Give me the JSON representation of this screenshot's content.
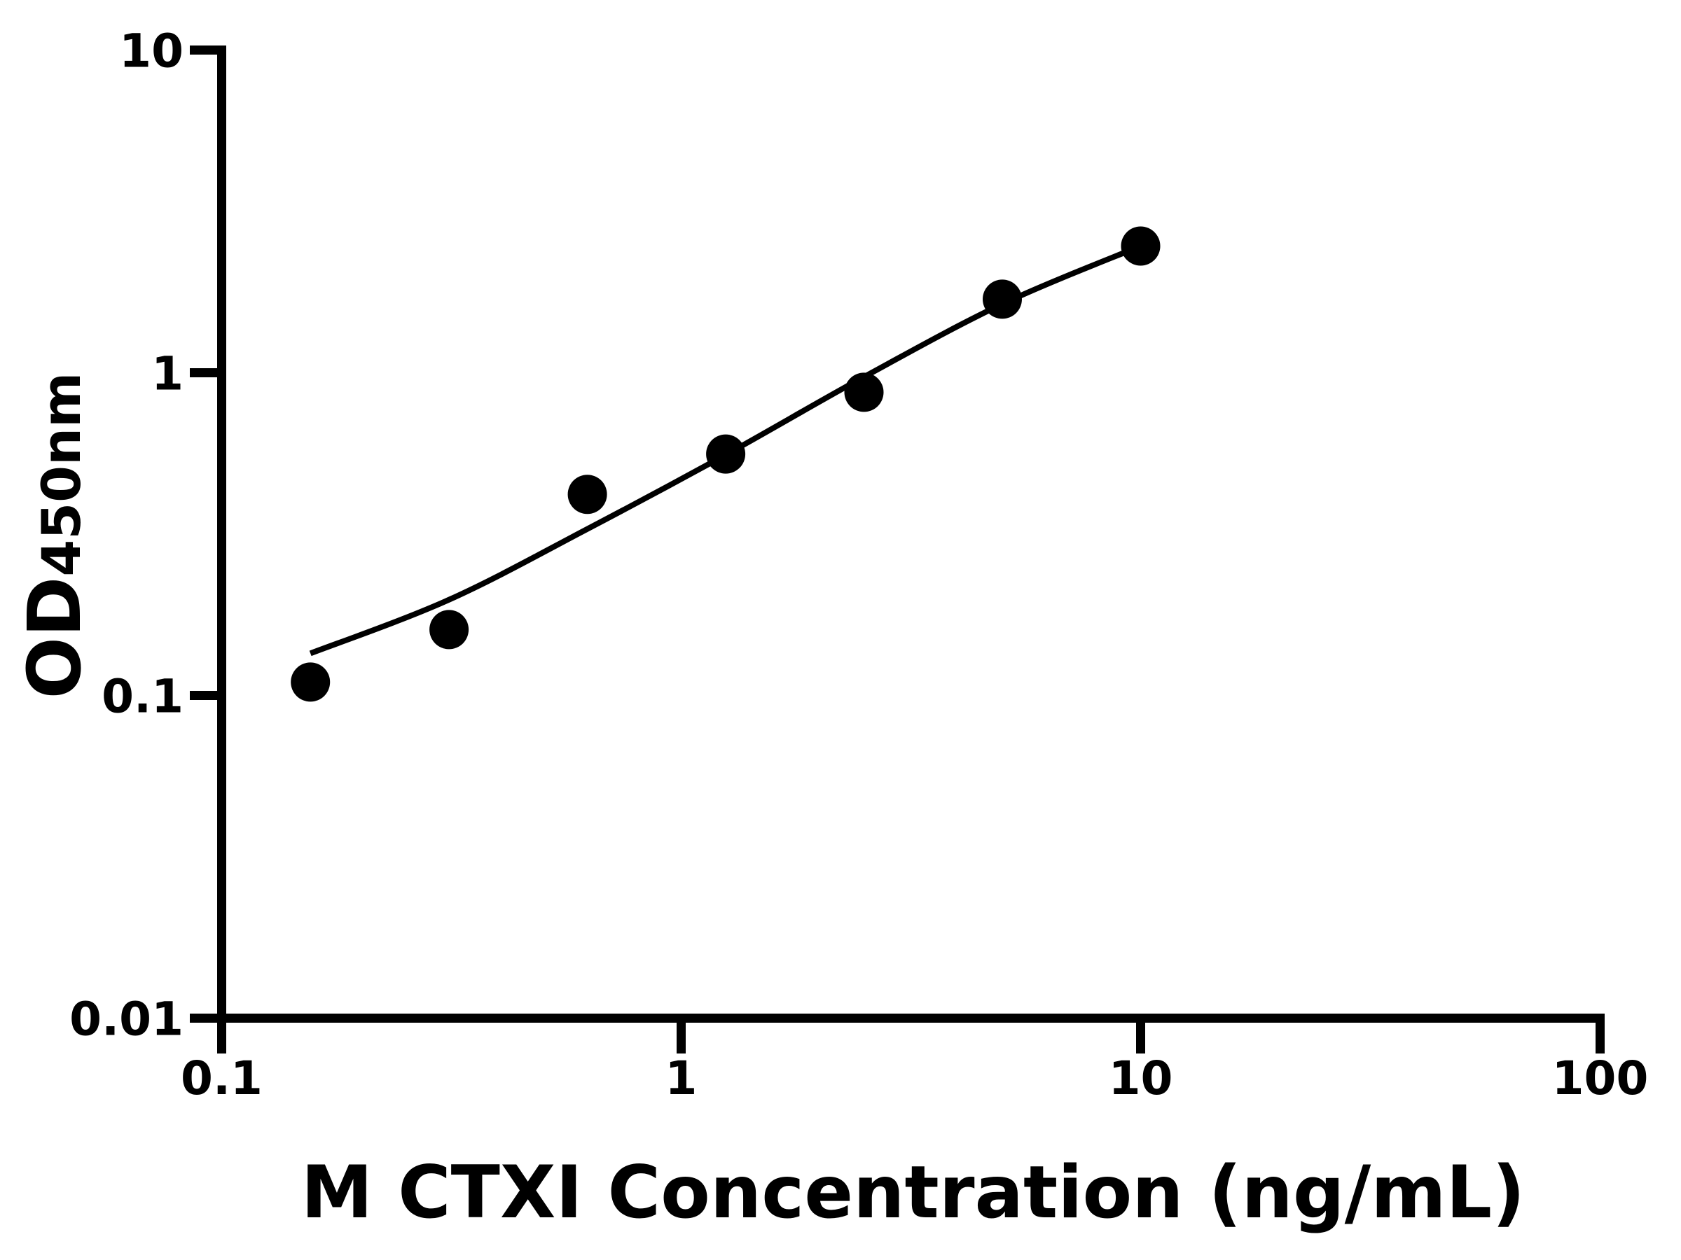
{
  "chart_data": {
    "type": "scatter",
    "title": "",
    "xlabel": "M CTXI Concentration (ng/mL)",
    "ylabel": "OD450nm",
    "ylabel_main": "OD",
    "ylabel_sub": "450nm",
    "x_scale": "log",
    "y_scale": "log",
    "xlim": [
      0.1,
      100
    ],
    "ylim": [
      0.01,
      10
    ],
    "grid": false,
    "legend": false,
    "x_ticks": [
      {
        "value": 0.1,
        "label": "0.1"
      },
      {
        "value": 1,
        "label": "1"
      },
      {
        "value": 10,
        "label": "10"
      },
      {
        "value": 100,
        "label": "100"
      }
    ],
    "y_ticks": [
      {
        "value": 0.01,
        "label": "0.01"
      },
      {
        "value": 0.1,
        "label": "0.1"
      },
      {
        "value": 1,
        "label": "1"
      },
      {
        "value": 10,
        "label": "10"
      }
    ],
    "colors": {
      "foreground": "#000000",
      "background": "#ffffff"
    },
    "series": [
      {
        "name": "standard-points",
        "type": "scatter",
        "marker": "filled-circle",
        "color": "#000000",
        "x": [
          0.156,
          0.3125,
          0.625,
          1.25,
          2.5,
          5,
          10
        ],
        "y": [
          0.11,
          0.16,
          0.42,
          0.56,
          0.87,
          1.69,
          2.47
        ]
      },
      {
        "name": "4pl-fit-curve",
        "type": "line",
        "color": "#000000",
        "x": [
          0.156,
          0.3125,
          0.625,
          1.25,
          2.5,
          5,
          10
        ],
        "y": [
          0.135,
          0.198,
          0.328,
          0.557,
          0.971,
          1.633,
          2.47
        ]
      }
    ]
  }
}
